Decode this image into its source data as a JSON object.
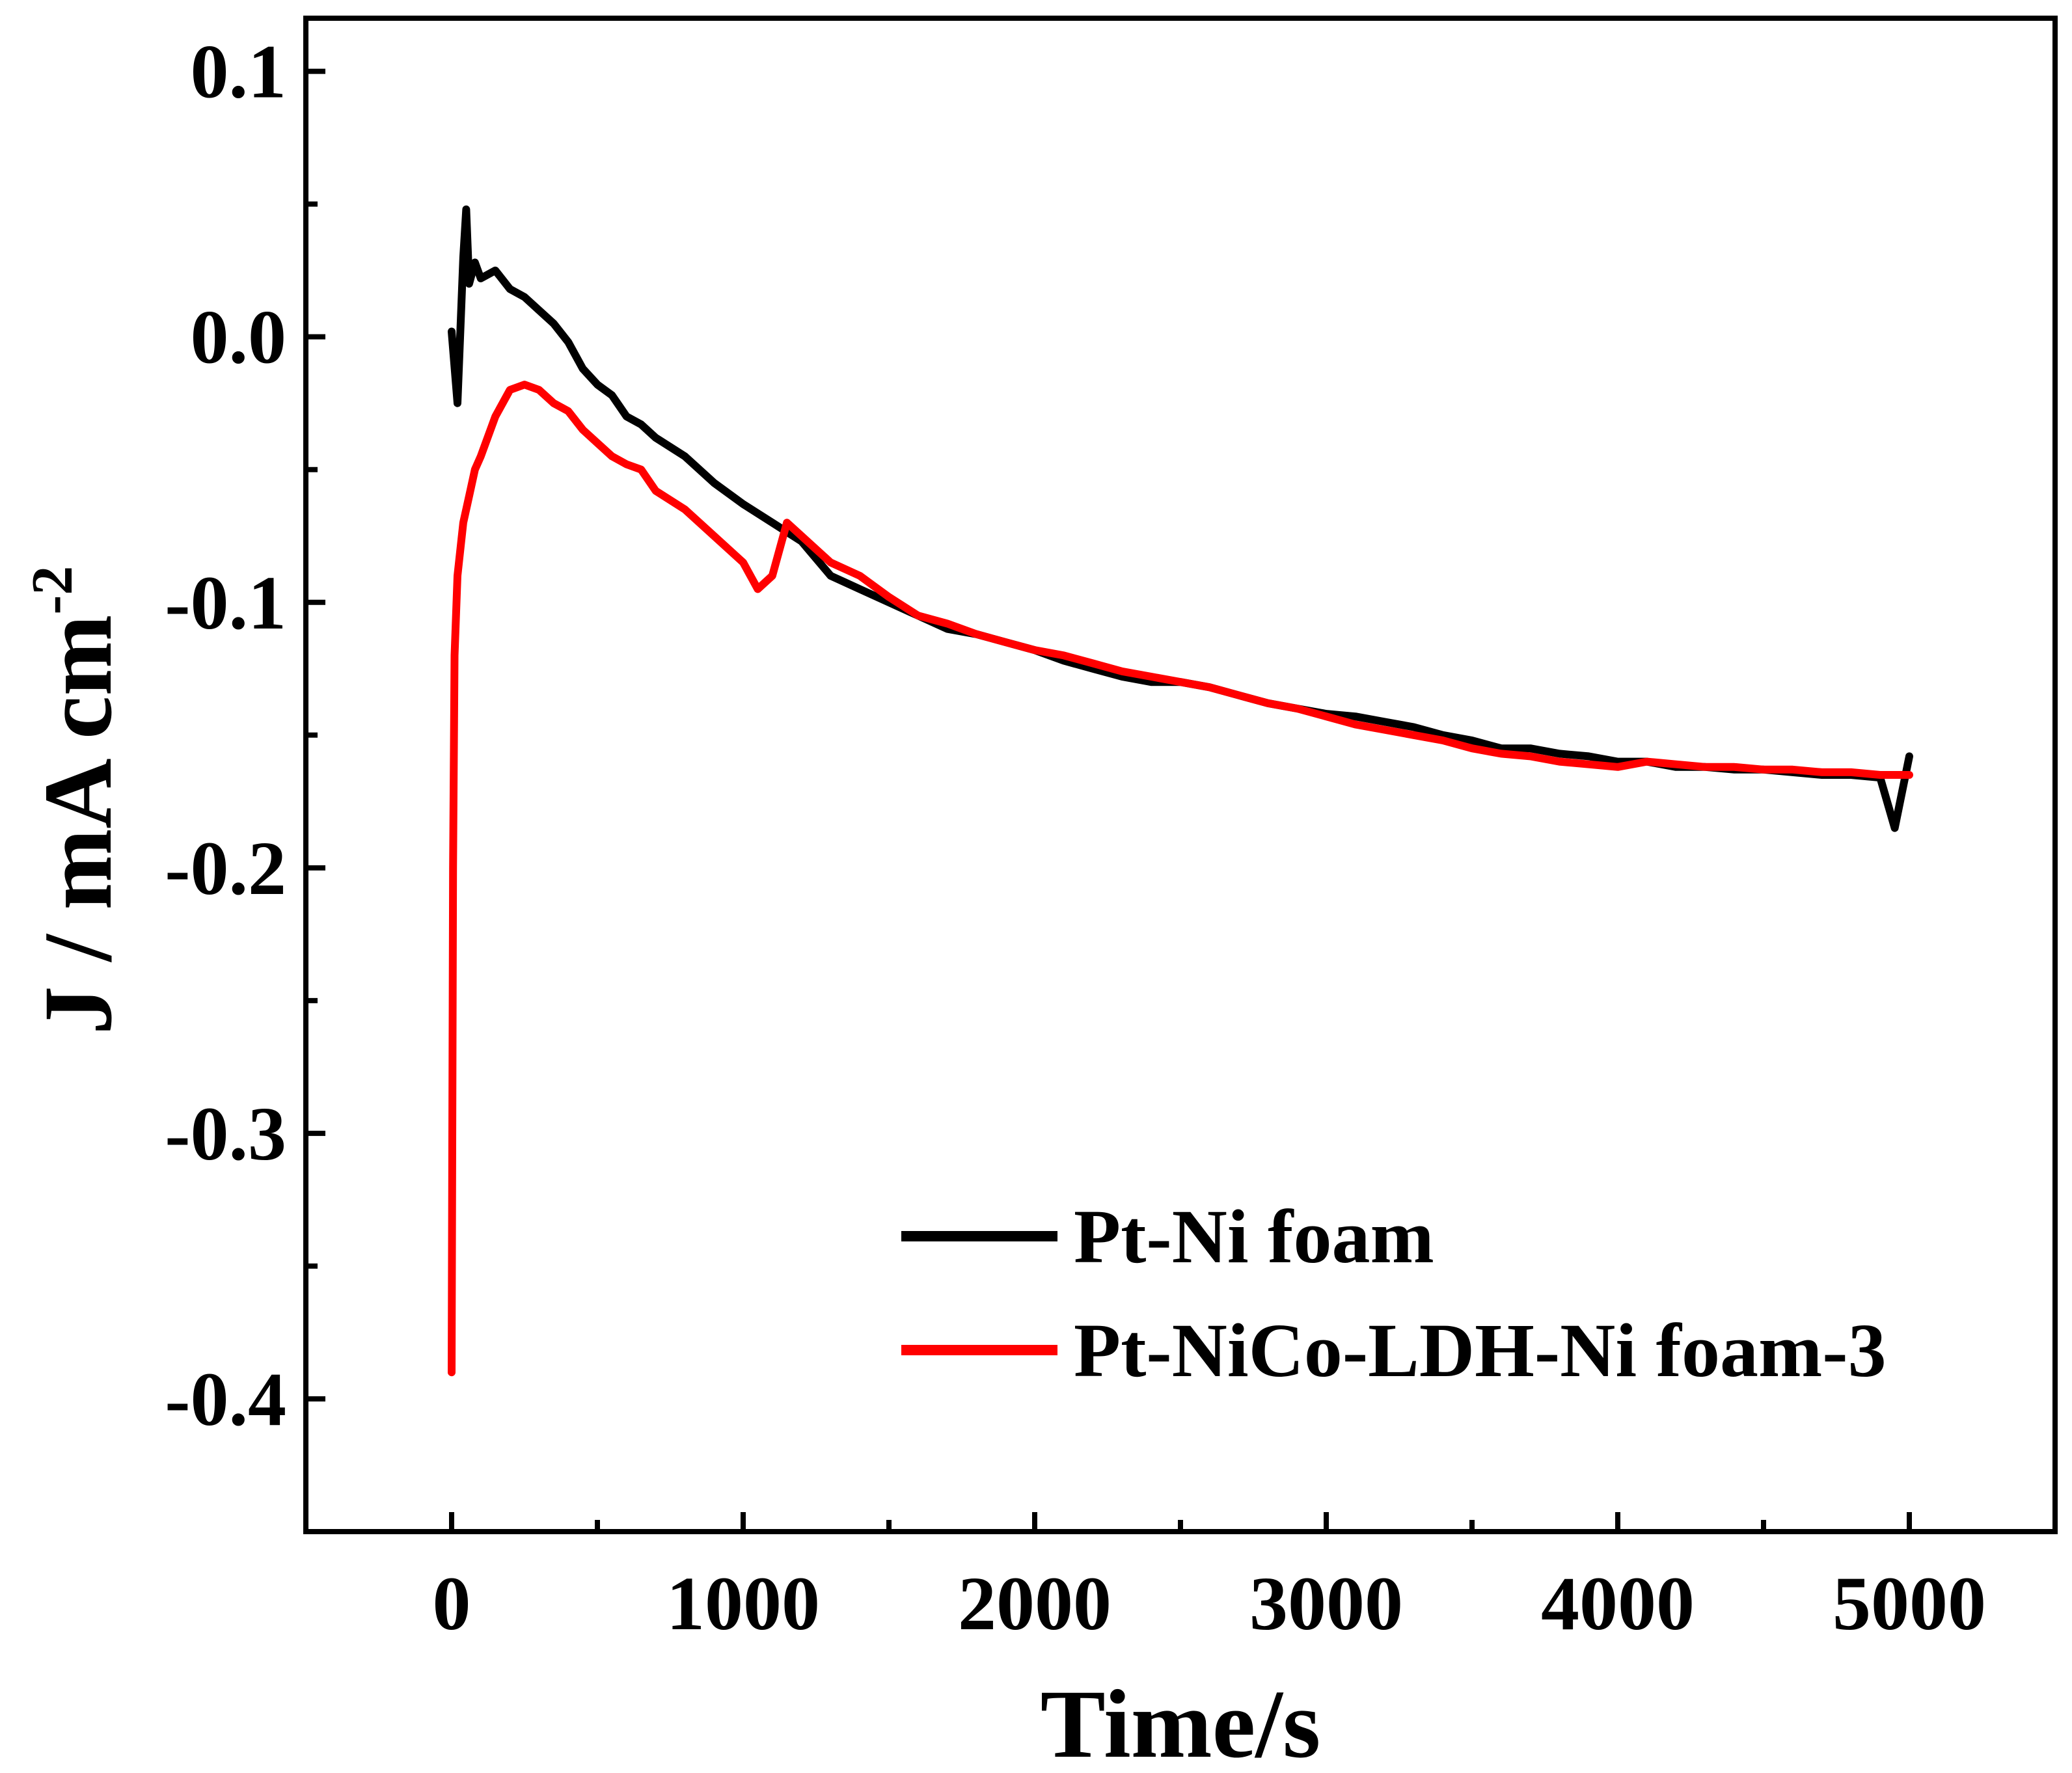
{
  "chart_data": {
    "type": "line",
    "title": "",
    "xlabel": "Time/s",
    "ylabel": "J / mA cm",
    "ylabel_superscript": "-2",
    "xlim": [
      -500,
      5500
    ],
    "ylim": [
      -0.45,
      0.12
    ],
    "x_ticks": [
      0,
      1000,
      2000,
      3000,
      4000,
      5000
    ],
    "x_tick_labels": [
      "0",
      "1000",
      "2000",
      "3000",
      "4000",
      "5000"
    ],
    "x_minor_ticks": [
      500,
      1500,
      2500,
      3500,
      4500
    ],
    "y_ticks": [
      0.1,
      0.0,
      -0.1,
      -0.2,
      -0.3,
      -0.4
    ],
    "y_tick_labels": [
      "0.1",
      "0.0",
      "-0.1",
      "-0.2",
      "-0.3",
      "-0.4"
    ],
    "y_minor_ticks": [
      0.05,
      -0.05,
      -0.15,
      -0.25,
      -0.35
    ],
    "grid": false,
    "legend_position": "bottom-right",
    "series": [
      {
        "name": "Pt-Ni foam",
        "color": "#000000",
        "x": [
          0,
          20,
          40,
          50,
          60,
          80,
          100,
          150,
          200,
          250,
          300,
          350,
          400,
          450,
          500,
          550,
          600,
          650,
          700,
          800,
          900,
          1000,
          1100,
          1200,
          1300,
          1400,
          1500,
          1600,
          1700,
          1800,
          1900,
          2000,
          2100,
          2200,
          2300,
          2400,
          2500,
          2600,
          2700,
          2800,
          2900,
          3000,
          3100,
          3200,
          3300,
          3400,
          3500,
          3600,
          3700,
          3800,
          3900,
          4000,
          4100,
          4200,
          4300,
          4400,
          4500,
          4600,
          4700,
          4800,
          4900,
          4950,
          5000
        ],
        "y": [
          0.002,
          -0.025,
          0.03,
          0.048,
          0.02,
          0.028,
          0.022,
          0.025,
          0.018,
          0.015,
          0.01,
          0.005,
          -0.002,
          -0.012,
          -0.018,
          -0.022,
          -0.03,
          -0.033,
          -0.038,
          -0.045,
          -0.055,
          -0.063,
          -0.07,
          -0.077,
          -0.09,
          -0.095,
          -0.1,
          -0.105,
          -0.11,
          -0.112,
          -0.115,
          -0.118,
          -0.122,
          -0.125,
          -0.128,
          -0.13,
          -0.13,
          -0.132,
          -0.135,
          -0.138,
          -0.14,
          -0.142,
          -0.143,
          -0.145,
          -0.147,
          -0.15,
          -0.152,
          -0.155,
          -0.155,
          -0.157,
          -0.158,
          -0.16,
          -0.16,
          -0.162,
          -0.162,
          -0.163,
          -0.163,
          -0.164,
          -0.165,
          -0.165,
          -0.166,
          -0.185,
          -0.158
        ]
      },
      {
        "name": "Pt-NiCo-LDH-Ni foam-3",
        "color": "#ff0000",
        "x": [
          0,
          5,
          10,
          20,
          40,
          60,
          80,
          100,
          150,
          200,
          250,
          300,
          350,
          400,
          450,
          500,
          550,
          600,
          650,
          700,
          800,
          900,
          1000,
          1050,
          1100,
          1150,
          1200,
          1300,
          1400,
          1500,
          1600,
          1700,
          1800,
          1900,
          2000,
          2100,
          2200,
          2300,
          2400,
          2500,
          2600,
          2700,
          2800,
          2900,
          3000,
          3100,
          3200,
          3300,
          3400,
          3500,
          3600,
          3700,
          3800,
          3900,
          4000,
          4100,
          4200,
          4300,
          4400,
          4500,
          4600,
          4700,
          4800,
          4900,
          5000
        ],
        "y": [
          -0.39,
          -0.2,
          -0.12,
          -0.09,
          -0.07,
          -0.06,
          -0.05,
          -0.045,
          -0.03,
          -0.02,
          -0.018,
          -0.02,
          -0.025,
          -0.028,
          -0.035,
          -0.04,
          -0.045,
          -0.048,
          -0.05,
          -0.058,
          -0.065,
          -0.075,
          -0.085,
          -0.095,
          -0.09,
          -0.07,
          -0.075,
          -0.085,
          -0.09,
          -0.098,
          -0.105,
          -0.108,
          -0.112,
          -0.115,
          -0.118,
          -0.12,
          -0.123,
          -0.126,
          -0.128,
          -0.13,
          -0.132,
          -0.135,
          -0.138,
          -0.14,
          -0.143,
          -0.146,
          -0.148,
          -0.15,
          -0.152,
          -0.155,
          -0.157,
          -0.158,
          -0.16,
          -0.161,
          -0.162,
          -0.16,
          -0.161,
          -0.162,
          -0.162,
          -0.163,
          -0.163,
          -0.164,
          -0.164,
          -0.165,
          -0.165
        ]
      }
    ]
  }
}
